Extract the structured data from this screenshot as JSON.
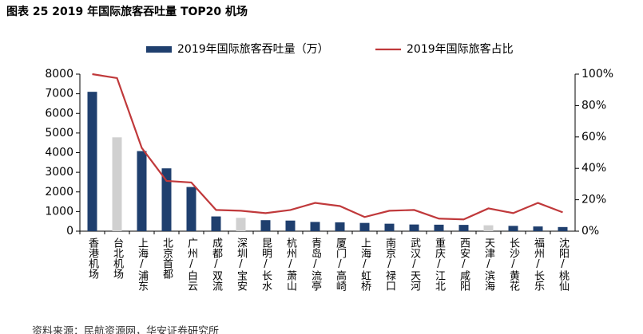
{
  "chart_data": {
    "type": "bar-line",
    "title": "图表 25 2019 年国际旅客吞吐量 TOP20 机场",
    "source": "资料来源：民航资源网，华安证券研究所",
    "categories": [
      "香港机场",
      "台北机场",
      "上海/浦东",
      "北京首都",
      "广州/白云",
      "成都/双流",
      "深圳/宝安",
      "昆明/长水",
      "杭州/萧山",
      "青岛/流亭",
      "厦门/高崎",
      "上海/虹桥",
      "南京/禄口",
      "武汉/天河",
      "重庆/江北",
      "西安/咸阳",
      "天津/滨海",
      "长沙/黄花",
      "福州/长乐",
      "沈阳/桃仙"
    ],
    "series": [
      {
        "name": "2019年国际旅客吞吐量（万）",
        "color": "#1f3f6e",
        "point_colors": [
          "#1f3f6e",
          "#d0d0d0",
          "#1f3f6e",
          "#1f3f6e",
          "#1f3f6e",
          "#1f3f6e",
          "#d0d0d0",
          "#1f3f6e",
          "#1f3f6e",
          "#1f3f6e",
          "#1f3f6e",
          "#1f3f6e",
          "#1f3f6e",
          "#1f3f6e",
          "#1f3f6e",
          "#1f3f6e",
          "#d0d0d0",
          "#1f3f6e",
          "#1f3f6e",
          "#1f3f6e"
        ],
        "values": [
          7100,
          4780,
          4080,
          3200,
          2250,
          750,
          680,
          560,
          540,
          470,
          450,
          420,
          380,
          340,
          330,
          320,
          300,
          270,
          240,
          210
        ]
      },
      {
        "name": "2019年国际旅客占比",
        "color": "#c0393b",
        "axis": "y2",
        "values": [
          100,
          97.5,
          53,
          32,
          31,
          13.5,
          13,
          11.5,
          13.5,
          18,
          16,
          9,
          13,
          13.5,
          8,
          7.5,
          14.5,
          11.5,
          18,
          12
        ]
      }
    ],
    "ylim": [
      0,
      8000
    ],
    "yticks": [
      0,
      1000,
      2000,
      3000,
      4000,
      5000,
      6000,
      7000,
      8000
    ],
    "y2lim": [
      0,
      100
    ],
    "y2ticks": [
      {
        "value": 0,
        "label": "0%"
      },
      {
        "value": 20,
        "label": "20%"
      },
      {
        "value": 40,
        "label": "40%"
      },
      {
        "value": 60,
        "label": "60%"
      },
      {
        "value": 80,
        "label": "80%"
      },
      {
        "value": 100,
        "label": "100%"
      }
    ]
  }
}
